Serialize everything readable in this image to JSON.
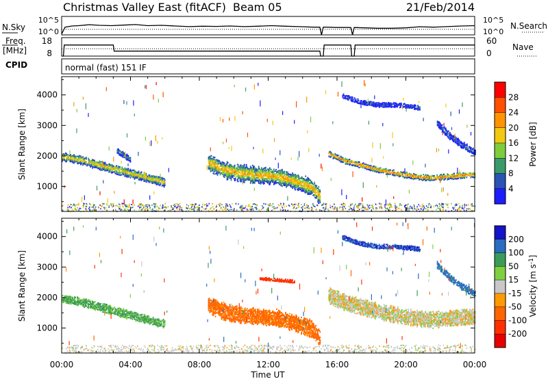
{
  "header": {
    "station": "Christmas Valley East (fitACF)",
    "beam": "Beam 05",
    "date": "21/Feb/2014"
  },
  "left_labels": {
    "nsky": "N.Sky",
    "freq": "Freq.",
    "freq_unit": "[MHz]",
    "cpid": "CPID"
  },
  "right_labels": {
    "nsearch": "N.Search",
    "nave": "Nave"
  },
  "mode_text": "normal (fast) 151 IF",
  "chart_data": [
    {
      "type": "line",
      "panel": "noise",
      "series": [
        {
          "name": "N.Sky",
          "style": "solid",
          "x": [
            0,
            0.2,
            0.6,
            1.0,
            1.6,
            2.2,
            2.9,
            3.6,
            4.3,
            5.0,
            5.8,
            6.6,
            7.4,
            8.2,
            9.0,
            9.8,
            10.6,
            11.4,
            12.2,
            13.0,
            13.8,
            14.6,
            15.0,
            15.1,
            15.2,
            15.4,
            16.0,
            16.8,
            16.9,
            17.0,
            17.6,
            18.4,
            19.2,
            20.0,
            20.8,
            21.6,
            22.4,
            23.2,
            24.0
          ],
          "y": [
            0.05,
            0.42,
            0.48,
            0.5,
            0.55,
            0.52,
            0.5,
            0.53,
            0.56,
            0.5,
            0.52,
            0.48,
            0.45,
            0.47,
            0.46,
            0.48,
            0.45,
            0.47,
            0.5,
            0.47,
            0.45,
            0.42,
            0.42,
            0.0,
            0.42,
            0.42,
            0.4,
            0.4,
            0.0,
            0.4,
            0.38,
            0.36,
            0.36,
            0.38,
            0.44,
            0.42,
            0.45,
            0.48,
            0.5
          ]
        },
        {
          "name": "N.Search",
          "style": "dotted",
          "x": [
            0,
            24
          ],
          "y": [
            0.3,
            0.3
          ]
        }
      ],
      "ytick_left": [
        "10^5",
        "10^0"
      ],
      "ytick_right": [
        "10^5",
        "10^0"
      ]
    },
    {
      "type": "line",
      "panel": "freq",
      "series": [
        {
          "name": "Freq.",
          "style": "solid",
          "x": [
            0,
            0.1,
            0.15,
            3.0,
            3.05,
            15.0,
            15.05,
            15.2,
            15.25,
            16.8,
            16.85,
            17.0,
            17.05,
            24.0
          ],
          "y": [
            8,
            8,
            14,
            14,
            10.7,
            10.7,
            8,
            8,
            14,
            14,
            8,
            8,
            14,
            14
          ]
        },
        {
          "name": "Nave",
          "style": "dotted",
          "x": [
            0,
            24
          ],
          "y": [
            12,
            12
          ]
        }
      ],
      "ytick_left": [
        "18",
        "8"
      ],
      "ytick_right": [
        "60",
        "0"
      ],
      "ylim": [
        8,
        18
      ]
    },
    {
      "type": "heatmap",
      "panel": "power",
      "ylabel": "Slant Range [km]",
      "ylim": [
        180,
        4600
      ],
      "yticks": [
        1000,
        2000,
        3000,
        4000
      ],
      "colorbar_label": "Power [dB]",
      "colorbar_ticks": [
        "28",
        "24",
        "20",
        "16",
        "12",
        "8",
        "4"
      ],
      "colorbar_colors": [
        "#ff0000",
        "#ff5000",
        "#ff9400",
        "#f2c811",
        "#7fcc3c",
        "#3b9a6a",
        "#2a54b4",
        "#1d1dff"
      ],
      "features": [
        {
          "x": [
            0.0,
            1.0,
            2.0,
            3.0,
            4.0,
            5.0,
            6.0
          ],
          "y": [
            2000,
            1900,
            1750,
            1600,
            1450,
            1300,
            1150
          ],
          "halfwidth": 120,
          "value": 20
        },
        {
          "x": [
            8.5,
            9.5,
            10.5,
            11.5,
            12.5,
            13.5,
            14.5,
            15.0
          ],
          "y": [
            1800,
            1550,
            1450,
            1400,
            1350,
            1200,
            1000,
            700
          ],
          "halfwidth": 230,
          "value": 22
        },
        {
          "x": [
            15.5,
            16.5,
            17.5,
            18.5,
            19.5,
            20.5,
            21.5,
            22.5,
            23.5,
            24.0
          ],
          "y": [
            2100,
            1850,
            1700,
            1550,
            1450,
            1350,
            1300,
            1350,
            1400,
            1400
          ],
          "halfwidth": 80,
          "value": 26
        },
        {
          "x": [
            16.3,
            17.3,
            18.3,
            19.3,
            20.3,
            20.8
          ],
          "y": [
            4000,
            3800,
            3700,
            3700,
            3650,
            3600
          ],
          "halfwidth": 60,
          "value": 6
        },
        {
          "x": [
            21.8,
            22.5,
            23.2,
            24.0
          ],
          "y": [
            3100,
            2700,
            2400,
            2150
          ],
          "halfwidth": 100,
          "value": 7
        },
        {
          "x": [
            3.2,
            3.6,
            4.0
          ],
          "y": [
            2200,
            2050,
            1900
          ],
          "halfwidth": 80,
          "value": 10
        }
      ]
    },
    {
      "type": "heatmap",
      "panel": "velocity",
      "ylabel": "Slant Range [km]",
      "xlabel": "Time UT",
      "ylim": [
        180,
        4600
      ],
      "yticks": [
        1000,
        2000,
        3000,
        4000
      ],
      "xticks": [
        "00:00",
        "04:00",
        "08:00",
        "12:00",
        "16:00",
        "20:00",
        "00:00"
      ],
      "colorbar_label": "Velocity [m s",
      "colorbar_label_sup": "-1",
      "colorbar_ticks": [
        "200",
        "100",
        "50",
        "15",
        "-15",
        "-50",
        "-100",
        "-200"
      ],
      "colorbar_colors": [
        "#1414c8",
        "#2a6cc0",
        "#3c9b5a",
        "#7ed040",
        "#c8c8c8",
        "#ff9a00",
        "#ff6400",
        "#ff3000",
        "#e60000"
      ],
      "features": [
        {
          "x": [
            0.0,
            1.0,
            2.0,
            3.0,
            4.0,
            5.0,
            6.0
          ],
          "y": [
            2000,
            1900,
            1750,
            1600,
            1450,
            1300,
            1150
          ],
          "halfwidth": 120,
          "value": 60
        },
        {
          "x": [
            8.5,
            9.5,
            10.5,
            11.5,
            12.5,
            13.5,
            14.5,
            15.0
          ],
          "y": [
            1800,
            1550,
            1450,
            1400,
            1350,
            1200,
            1000,
            700
          ],
          "halfwidth": 230,
          "value": -70
        },
        {
          "x": [
            15.5,
            16.5,
            17.5,
            18.5,
            19.5,
            20.5,
            21.5,
            22.5,
            23.5,
            24.0
          ],
          "y": [
            2100,
            1850,
            1700,
            1550,
            1450,
            1350,
            1300,
            1350,
            1400,
            1400
          ],
          "halfwidth": 220,
          "value": 0
        },
        {
          "x": [
            16.3,
            17.3,
            18.3,
            19.3,
            20.3,
            20.8
          ],
          "y": [
            4000,
            3800,
            3700,
            3700,
            3650,
            3600
          ],
          "halfwidth": 60,
          "value": 200
        },
        {
          "x": [
            21.8,
            22.5,
            23.2,
            24.0
          ],
          "y": [
            3100,
            2700,
            2400,
            2150
          ],
          "halfwidth": 100,
          "value": 120
        },
        {
          "x": [
            11.5,
            12.5,
            13.5
          ],
          "y": [
            2650,
            2600,
            2550
          ],
          "halfwidth": 40,
          "value": -160
        }
      ]
    }
  ]
}
